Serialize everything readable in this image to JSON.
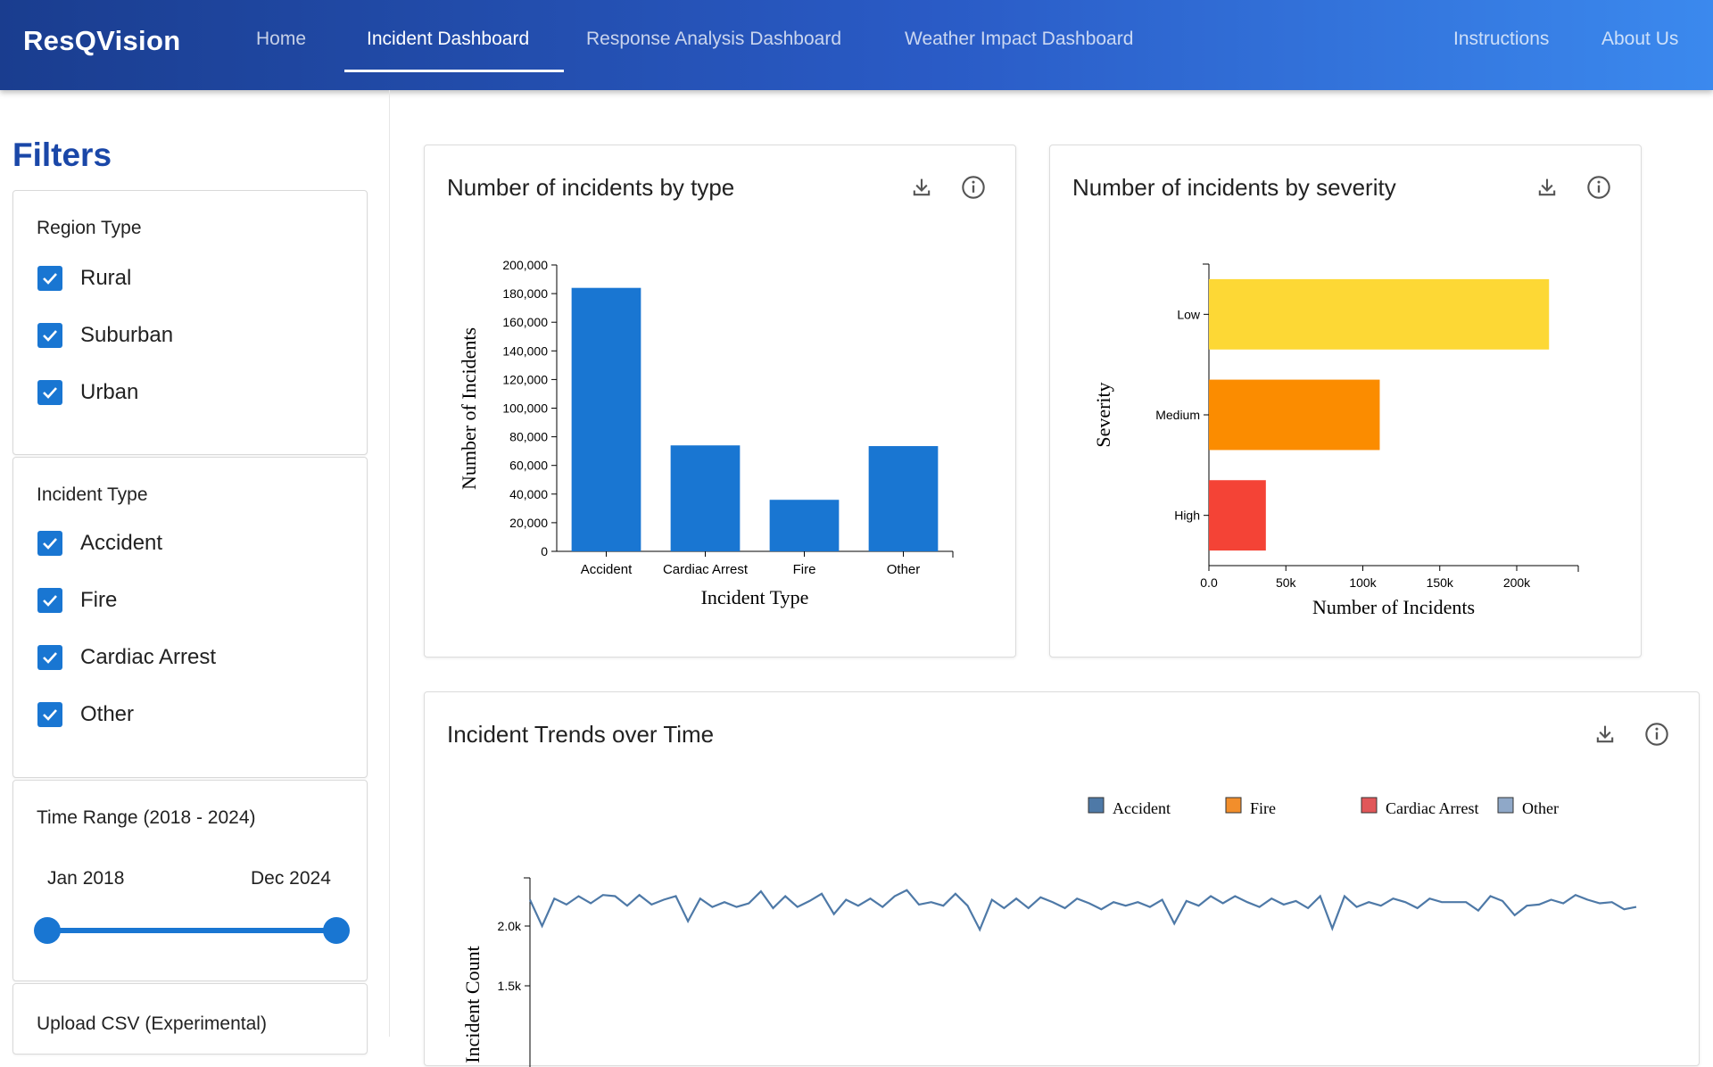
{
  "header": {
    "brand": "ResQVision",
    "nav": [
      {
        "label": "Home",
        "active": false
      },
      {
        "label": "Incident Dashboard",
        "active": true
      },
      {
        "label": "Response Analysis Dashboard",
        "active": false
      },
      {
        "label": "Weather Impact Dashboard",
        "active": false
      }
    ],
    "right_nav": [
      {
        "label": "Instructions"
      },
      {
        "label": "About Us"
      }
    ]
  },
  "sidebar": {
    "title": "Filters",
    "region": {
      "title": "Region Type",
      "options": [
        {
          "label": "Rural",
          "checked": true
        },
        {
          "label": "Suburban",
          "checked": true
        },
        {
          "label": "Urban",
          "checked": true
        }
      ]
    },
    "incident": {
      "title": "Incident Type",
      "options": [
        {
          "label": "Accident",
          "checked": true
        },
        {
          "label": "Fire",
          "checked": true
        },
        {
          "label": "Cardiac Arrest",
          "checked": true
        },
        {
          "label": "Other",
          "checked": true
        }
      ]
    },
    "time": {
      "title": "Time Range (2018 - 2024)",
      "start_label": "Jan 2018",
      "end_label": "Dec 2024",
      "start_fraction": 0.0,
      "end_fraction": 1.0
    },
    "upload": {
      "title": "Upload CSV (Experimental)"
    }
  },
  "colors": {
    "accent": "#1976d2",
    "bar_type": "#1976d2",
    "low": "#fdd835",
    "medium": "#fb8c00",
    "high": "#f44336",
    "line_accident": "#4e79a7"
  },
  "chart_data": [
    {
      "type": "bar",
      "title": "Number of incidents by type",
      "categories": [
        "Accident",
        "Cardiac Arrest",
        "Fire",
        "Other"
      ],
      "values": [
        184000,
        74000,
        36000,
        73500
      ],
      "xlabel": "Incident Type",
      "ylabel": "Number of Incidents",
      "ylim": [
        0,
        200000
      ],
      "yticks": [
        "0",
        "20,000",
        "40,000",
        "60,000",
        "80,000",
        "100,000",
        "120,000",
        "140,000",
        "160,000",
        "180,000",
        "200,000"
      ]
    },
    {
      "type": "bar",
      "orientation": "horizontal",
      "title": "Number of incidents by severity",
      "categories": [
        "Low",
        "Medium",
        "High"
      ],
      "values": [
        221000,
        111000,
        37000
      ],
      "xlabel": "Number of Incidents",
      "ylabel": "Severity",
      "xlim": [
        0,
        240000
      ],
      "xticks": [
        "0.0",
        "50k",
        "100k",
        "150k",
        "200k"
      ]
    },
    {
      "type": "line",
      "title": "Incident Trends over Time",
      "ylabel": "Incident Count",
      "yticks": [
        "2.0k",
        "1.5k"
      ],
      "legend": [
        "Accident",
        "Fire",
        "Cardiac Arrest",
        "Other"
      ],
      "legend_colors": [
        "#4e79a7",
        "#f28e2b",
        "#e15759",
        "#8fa8c8"
      ],
      "series": [
        {
          "name": "Accident",
          "values": [
            2220,
            2000,
            2230,
            2180,
            2250,
            2190,
            2260,
            2250,
            2170,
            2260,
            2180,
            2220,
            2250,
            2040,
            2230,
            2160,
            2200,
            2160,
            2190,
            2290,
            2150,
            2250,
            2160,
            2210,
            2270,
            2100,
            2220,
            2170,
            2230,
            2160,
            2250,
            2300,
            2180,
            2200,
            2170,
            2270,
            2170,
            1970,
            2220,
            2150,
            2230,
            2150,
            2240,
            2200,
            2150,
            2230,
            2190,
            2140,
            2200,
            2170,
            2200,
            2160,
            2220,
            2020,
            2210,
            2170,
            2250,
            2190,
            2250,
            2200,
            2160,
            2230,
            2180,
            2210,
            2150,
            2250,
            1980,
            2250,
            2160,
            2200,
            2170,
            2230,
            2200,
            2150,
            2230,
            2200,
            2200,
            2200,
            2130,
            2250,
            2210,
            2090,
            2170,
            2180,
            2220,
            2190,
            2260,
            2220,
            2190,
            2200,
            2140,
            2160
          ]
        }
      ]
    }
  ]
}
